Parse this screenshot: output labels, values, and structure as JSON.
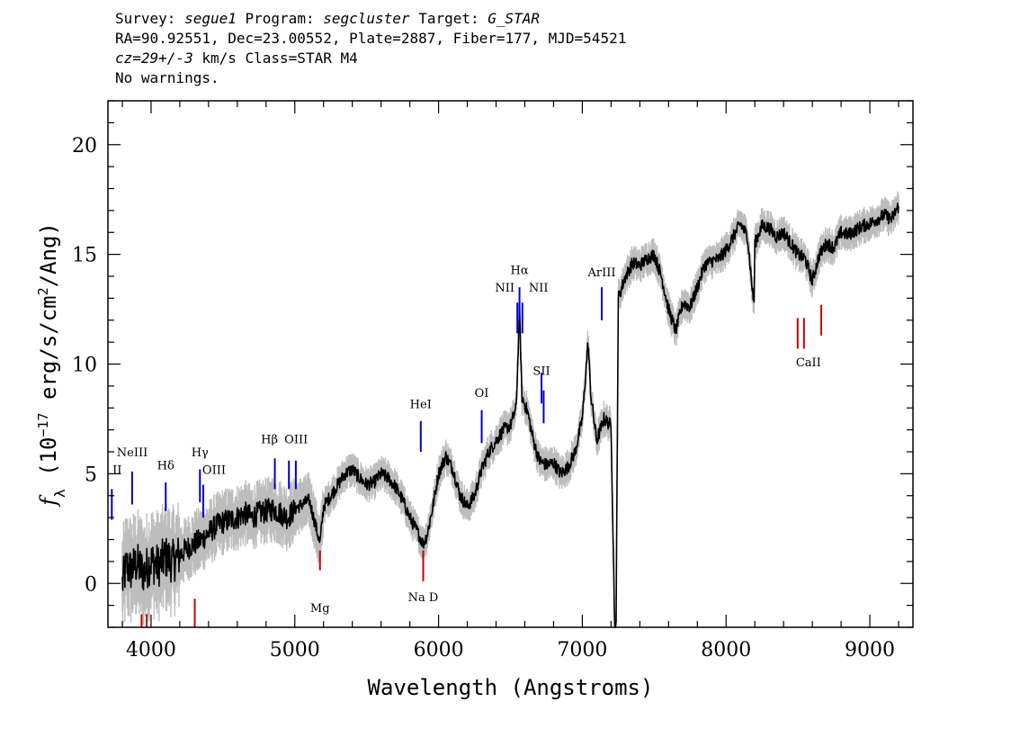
{
  "header": {
    "line1": {
      "survey_label": "Survey:",
      "survey": "segue1",
      "program_label": "Program:",
      "program": "segcluster",
      "target_label": "Target:",
      "target": "G_STAR"
    },
    "line2": "RA=90.92551, Dec=23.00552, Plate=2887, Fiber=177, MJD=54521",
    "line3": {
      "cz": "cz=29+/-3",
      "rest": "km/s Class=STAR M4"
    },
    "line4": "No warnings."
  },
  "chart_data": {
    "type": "line",
    "xlabel": "Wavelength (Angstroms)",
    "ylabel": "f_λ (10^-17 erg/s/cm^2/Ang)",
    "ylabel_parts": {
      "f": "f",
      "sub": "λ",
      "open": " (10",
      "exp1": "−17",
      "mid": " erg/s/cm",
      "exp2": "2",
      "close": "/Ang)"
    },
    "xlim": [
      3700,
      9300
    ],
    "ylim": [
      -2,
      22
    ],
    "xticks": [
      4000,
      5000,
      6000,
      7000,
      8000,
      9000
    ],
    "yticks": [
      0,
      5,
      10,
      15,
      20
    ],
    "xtick_labels": [
      "4000",
      "5000",
      "6000",
      "7000",
      "8000",
      "9000"
    ],
    "ytick_labels": [
      "0",
      "5",
      "10",
      "15",
      "20"
    ],
    "colors": {
      "flux": "#000000",
      "error": "#bdbdbd",
      "emission": "#0000cc",
      "absorption": "#cc0000"
    },
    "spectrum": {
      "x": [
        3800,
        3830,
        3860,
        3900,
        3950,
        4000,
        4050,
        4100,
        4150,
        4200,
        4250,
        4300,
        4350,
        4400,
        4450,
        4500,
        4550,
        4600,
        4650,
        4700,
        4750,
        4800,
        4850,
        4900,
        4950,
        5000,
        5050,
        5100,
        5150,
        5175,
        5200,
        5250,
        5300,
        5350,
        5400,
        5450,
        5500,
        5550,
        5600,
        5650,
        5700,
        5750,
        5800,
        5850,
        5893,
        5920,
        5960,
        6000,
        6050,
        6100,
        6150,
        6200,
        6250,
        6300,
        6350,
        6400,
        6450,
        6500,
        6540,
        6563,
        6580,
        6620,
        6660,
        6700,
        6750,
        6800,
        6850,
        6900,
        6950,
        7000,
        7040,
        7060,
        7100,
        7150,
        7200,
        7225,
        7235,
        7250,
        7300,
        7350,
        7400,
        7450,
        7500,
        7550,
        7600,
        7650,
        7700,
        7750,
        7800,
        7850,
        7900,
        7950,
        8000,
        8050,
        8100,
        8150,
        8185,
        8195,
        8200,
        8250,
        8300,
        8350,
        8400,
        8450,
        8500,
        8550,
        8600,
        8650,
        8700,
        8750,
        8800,
        8850,
        8900,
        8950,
        9000,
        9050,
        9100,
        9150,
        9200
      ],
      "y": [
        0.0,
        0.8,
        0.6,
        0.9,
        0.5,
        1.0,
        0.8,
        1.2,
        1.0,
        1.3,
        1.6,
        1.8,
        2.0,
        2.3,
        2.6,
        2.8,
        2.9,
        3.0,
        3.2,
        3.0,
        3.2,
        3.3,
        3.4,
        3.2,
        3.0,
        3.4,
        3.6,
        3.8,
        2.5,
        1.8,
        3.5,
        4.0,
        4.5,
        5.0,
        5.2,
        4.8,
        4.5,
        4.6,
        5.0,
        4.8,
        4.4,
        3.8,
        3.0,
        2.4,
        1.8,
        2.2,
        3.5,
        5.0,
        5.8,
        5.2,
        4.0,
        3.5,
        4.0,
        5.2,
        6.0,
        6.5,
        7.0,
        7.2,
        8.0,
        12.4,
        8.5,
        7.8,
        6.5,
        5.6,
        5.4,
        5.5,
        5.0,
        5.3,
        6.0,
        7.5,
        11.0,
        8.5,
        6.5,
        7.5,
        7.2,
        -2.0,
        -2.0,
        13.0,
        14.0,
        14.6,
        14.5,
        14.8,
        15.0,
        14.0,
        12.5,
        11.5,
        12.8,
        12.6,
        13.5,
        14.5,
        14.7,
        14.8,
        15.2,
        15.8,
        16.4,
        15.8,
        13.2,
        12.8,
        15.5,
        16.3,
        16.2,
        15.8,
        16.0,
        15.5,
        15.0,
        14.8,
        13.8,
        15.0,
        15.5,
        15.3,
        16.0,
        15.9,
        16.1,
        16.3,
        16.4,
        16.6,
        16.8,
        16.6,
        17.2
      ]
    },
    "lines": [
      {
        "label": "OII",
        "display": "II",
        "x": 3727,
        "y_from": 2.9,
        "y_to": 4.3,
        "kind": "emission",
        "label_y": 5.0,
        "label_dx": 6
      },
      {
        "label": "NeIII",
        "x": 3869,
        "y_from": 3.6,
        "y_to": 5.1,
        "kind": "emission",
        "label_y": 5.8,
        "label_dx": 0
      },
      {
        "label": "Hδ",
        "x": 4102,
        "y_from": 3.3,
        "y_to": 4.6,
        "kind": "emission",
        "label_y": 5.2,
        "label_dx": 0
      },
      {
        "label": "Hγ",
        "x": 4340,
        "y_from": 3.7,
        "y_to": 5.2,
        "kind": "emission",
        "label_y": 5.8,
        "label_dx": 0
      },
      {
        "label": "OIII",
        "x": 4363,
        "y_from": 3.0,
        "y_to": 4.5,
        "kind": "emission",
        "label_y": 5.0,
        "label_dx": 12
      },
      {
        "label": "Hβ",
        "x": 4861,
        "y_from": 4.3,
        "y_to": 5.7,
        "kind": "emission",
        "label_y": 6.4,
        "label_dx": -6
      },
      {
        "label": "OIII",
        "x": 4959,
        "y_from": 4.3,
        "y_to": 5.6,
        "kind": "emission",
        "label_y": 6.4,
        "label_dx": 8
      },
      {
        "label": "",
        "x": 5007,
        "y_from": 4.3,
        "y_to": 5.6,
        "kind": "emission",
        "label_y": 6.4,
        "label_dx": 0
      },
      {
        "label": "HeI",
        "x": 5876,
        "y_from": 6.0,
        "y_to": 7.4,
        "kind": "emission",
        "label_y": 8.0,
        "label_dx": 0
      },
      {
        "label": "OI",
        "x": 6300,
        "y_from": 6.4,
        "y_to": 7.9,
        "kind": "emission",
        "label_y": 8.5,
        "label_dx": 0
      },
      {
        "label": "NII",
        "x": 6548,
        "y_from": 11.4,
        "y_to": 12.8,
        "kind": "emission",
        "label_y": 13.3,
        "label_dx": -14
      },
      {
        "label": "Hα",
        "x": 6563,
        "y_from": 12.0,
        "y_to": 13.5,
        "kind": "emission",
        "label_y": 14.1,
        "label_dx": 0
      },
      {
        "label": "NII",
        "x": 6583,
        "y_from": 11.4,
        "y_to": 12.8,
        "kind": "emission",
        "label_y": 13.3,
        "label_dx": 18
      },
      {
        "label": "SII",
        "x": 6716,
        "y_from": 8.2,
        "y_to": 9.6,
        "kind": "emission",
        "label_y": 9.5,
        "label_dx": 0
      },
      {
        "label": "",
        "x": 6731,
        "y_from": 7.3,
        "y_to": 8.8,
        "kind": "emission",
        "label_y": 9.5,
        "label_dx": 0
      },
      {
        "label": "ArIII",
        "x": 7135,
        "y_from": 12.0,
        "y_to": 13.5,
        "kind": "emission",
        "label_y": 14.0,
        "label_dx": 0
      },
      {
        "label": "",
        "x": 3934,
        "y_from": -2.0,
        "y_to": -1.4,
        "kind": "absorption",
        "label_y": -2.0,
        "label_dx": 0
      },
      {
        "label": "",
        "x": 3969,
        "y_from": -2.0,
        "y_to": -1.4,
        "kind": "absorption",
        "label_y": -2.0,
        "label_dx": 0
      },
      {
        "label": "",
        "x": 4304,
        "y_from": -2.0,
        "y_to": -0.7,
        "kind": "absorption",
        "label_y": -2.0,
        "label_dx": 0
      },
      {
        "label": "Mg",
        "x": 5175,
        "y_from": 0.6,
        "y_to": 1.5,
        "kind": "absorption",
        "label_y": -1.3,
        "label_dx": 0
      },
      {
        "label": "Na D",
        "x": 5893,
        "y_from": 0.1,
        "y_to": 1.5,
        "kind": "absorption",
        "label_y": -0.8,
        "label_dx": 0
      },
      {
        "label": "CaII",
        "x": 8498,
        "y_from": 10.7,
        "y_to": 12.1,
        "kind": "absorption",
        "label_y": 9.9,
        "label_dx": 12
      },
      {
        "label": "",
        "x": 8542,
        "y_from": 10.7,
        "y_to": 12.1,
        "kind": "absorption",
        "label_y": 9.9,
        "label_dx": 0
      },
      {
        "label": "",
        "x": 8662,
        "y_from": 11.3,
        "y_to": 12.7,
        "kind": "absorption",
        "label_y": 9.9,
        "label_dx": 0
      }
    ]
  }
}
